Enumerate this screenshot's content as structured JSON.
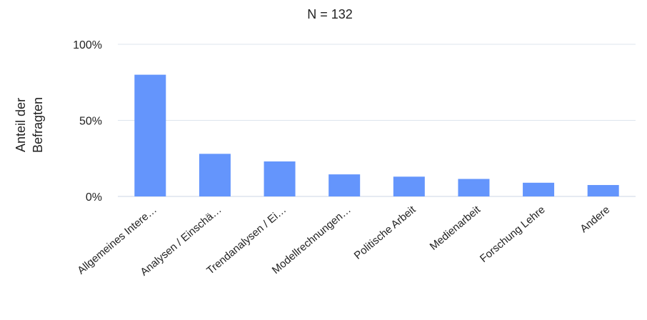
{
  "chart_data": {
    "type": "bar",
    "title": "N = 132",
    "ylabel_lines": [
      "Anteil der",
      "Befragten"
    ],
    "xlabel": "",
    "categories": [
      "Allgemeines Intere…",
      "Analysen / Einschä…",
      "Trendanalysen / Ei…",
      "Modellrechnungen…",
      "Politische Arbeit",
      "Medienarbeit",
      "Forschung Lehre",
      "Andere"
    ],
    "values": [
      80,
      28,
      23,
      14.5,
      13,
      11.5,
      9,
      7.5
    ],
    "ylim": [
      0,
      100
    ],
    "yticks": [
      0,
      50,
      100
    ],
    "ytick_labels": [
      "0%",
      "50%",
      "100%"
    ],
    "grid": true,
    "bar_color": "#6495fc",
    "grid_color": "#dde4ee"
  }
}
